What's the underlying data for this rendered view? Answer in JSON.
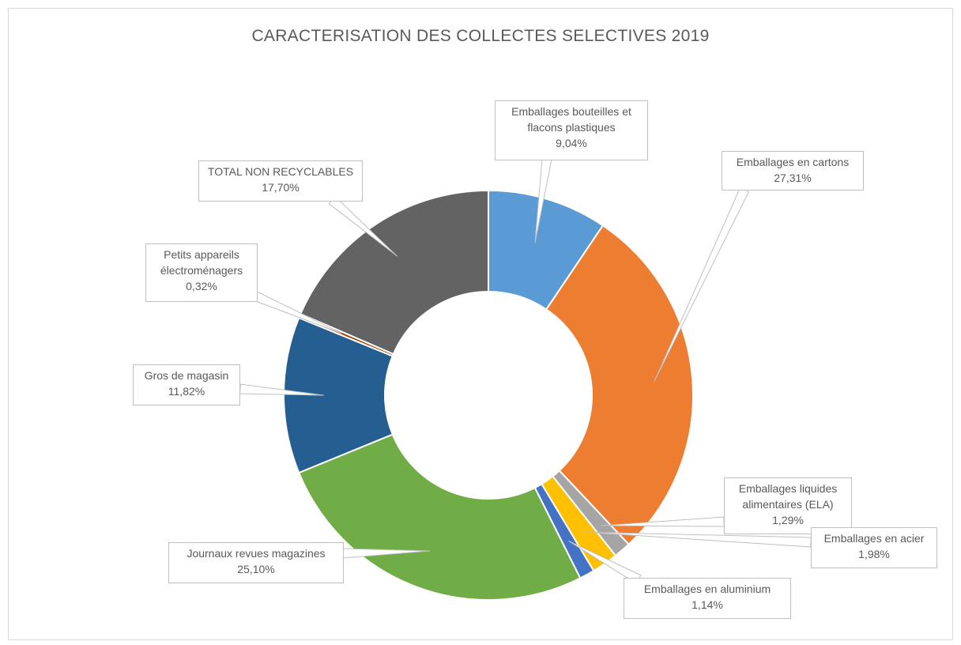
{
  "chart_data": {
    "type": "pie",
    "variant": "doughnut",
    "title": "CARACTERISATION DES COLLECTES SELECTIVES 2019",
    "legend": "none",
    "data_labels": "callouts",
    "slices": [
      {
        "key": "bouteilles",
        "label_lines": [
          "Emballages bouteilles et",
          "flacons plastiques"
        ],
        "value": 9.04,
        "value_label": "9,04%",
        "color": "#5b9bd5"
      },
      {
        "key": "cartons",
        "label_lines": [
          "Emballages en cartons"
        ],
        "value": 27.31,
        "value_label": "27,31%",
        "color": "#ed7d31"
      },
      {
        "key": "ela",
        "label_lines": [
          "Emballages liquides",
          "alimentaires (ELA)"
        ],
        "value": 1.29,
        "value_label": "1,29%",
        "color": "#a5a5a5"
      },
      {
        "key": "acier",
        "label_lines": [
          "Emballages en acier"
        ],
        "value": 1.98,
        "value_label": "1,98%",
        "color": "#ffc000"
      },
      {
        "key": "aluminium",
        "label_lines": [
          "Emballages en aluminium"
        ],
        "value": 1.14,
        "value_label": "1,14%",
        "color": "#4472c4"
      },
      {
        "key": "journaux",
        "label_lines": [
          "Journaux revues magazines"
        ],
        "value": 25.1,
        "value_label": "25,10%",
        "color": "#70ad47"
      },
      {
        "key": "gros",
        "label_lines": [
          "Gros de magasin"
        ],
        "value": 11.82,
        "value_label": "11,82%",
        "color": "#255e91"
      },
      {
        "key": "pae",
        "label_lines": [
          "Petits appareils",
          "électroménagers"
        ],
        "value": 0.32,
        "value_label": "0,32%",
        "color": "#9e480e"
      },
      {
        "key": "nonrecyclables",
        "label_lines": [
          "TOTAL NON RECYCLABLES"
        ],
        "value": 17.7,
        "value_label": "17,70%",
        "color": "#636363"
      }
    ]
  }
}
